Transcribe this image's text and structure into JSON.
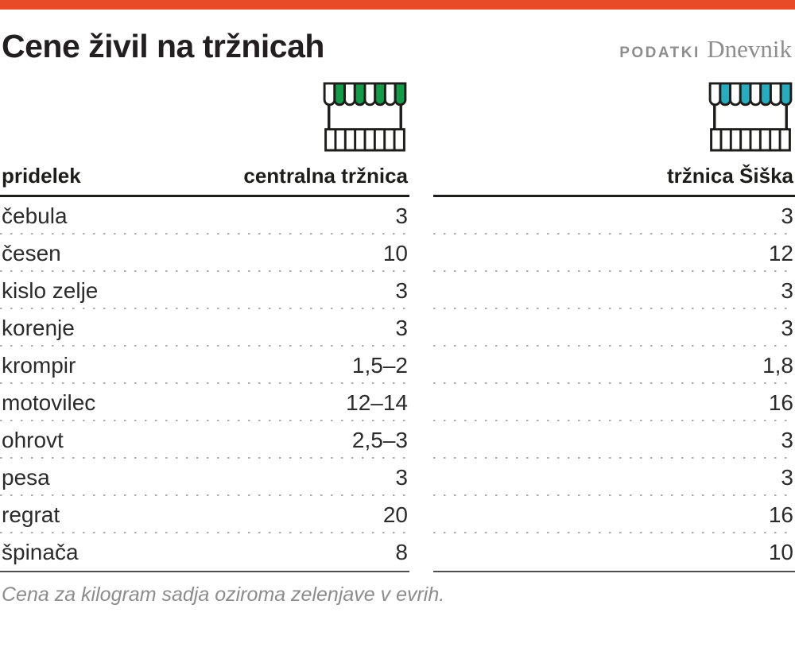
{
  "page": {
    "title": "Cene živil na tržnicah",
    "brand": {
      "podatki": "PODATKI",
      "dnevnik": "Dnevnik"
    },
    "footnote": "Cena za kilogram sadja oziroma zelenjave v evrih.",
    "icons": {
      "left": "market-stall-green-icon",
      "right": "market-stall-teal-icon"
    },
    "colors": {
      "accent_red": "#e84b27",
      "market_green": "#149a49",
      "market_teal": "#2aabbd",
      "header_line": "#1d1d1b",
      "dotted_line": "#adadad",
      "muted_gray": "#8c8c8c"
    }
  },
  "chart_data": {
    "type": "table",
    "title": "Cene živil na tržnicah",
    "row_header": "pridelek",
    "columns": [
      "centralna tržnica",
      "tržnica Šiška"
    ],
    "unit_note": "Cena za kilogram sadja oziroma zelenjave v evrih.",
    "rows": [
      {
        "label": "čebula",
        "central": "3",
        "siska": "3"
      },
      {
        "label": "česen",
        "central": "10",
        "siska": "12"
      },
      {
        "label": "kislo zelje",
        "central": "3",
        "siska": "3"
      },
      {
        "label": "korenje",
        "central": "3",
        "siska": "3"
      },
      {
        "label": "krompir",
        "central": "1,5–2",
        "siska": "1,8"
      },
      {
        "label": "motovilec",
        "central": "12–14",
        "siska": "16"
      },
      {
        "label": "ohrovt",
        "central": "2,5–3",
        "siska": "3"
      },
      {
        "label": "pesa",
        "central": "3",
        "siska": "3"
      },
      {
        "label": "regrat",
        "central": "20",
        "siska": "16"
      },
      {
        "label": "špinača",
        "central": "8",
        "siska": "10"
      }
    ]
  }
}
